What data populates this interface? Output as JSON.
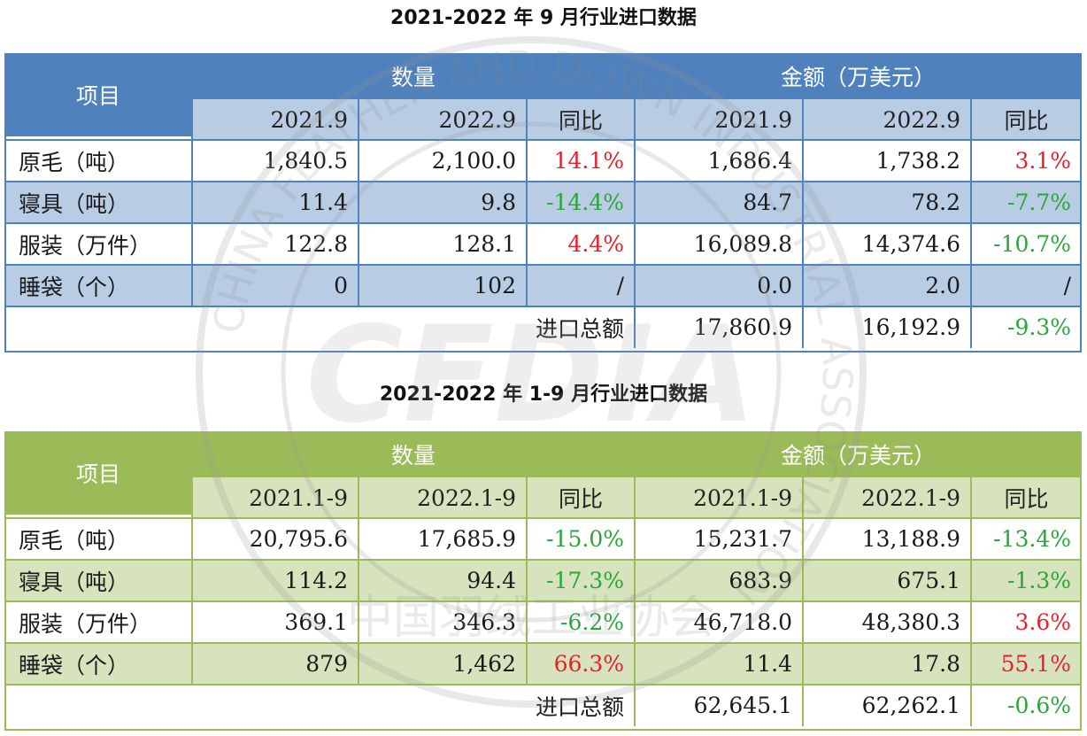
{
  "tables": [
    {
      "title": "2021-2022 年 9 月行业进口数据",
      "header": {
        "item": "项目",
        "group_qty": "数量",
        "group_amt": "金额（万美元）",
        "cols": [
          "2021.9",
          "2022.9",
          "同比",
          "2021.9",
          "2022.9",
          "同比"
        ]
      },
      "rows": [
        {
          "label": "原毛（吨）",
          "cells": [
            "1,840.5",
            "2,100.0",
            "14.1%",
            "1,686.4",
            "1,738.2",
            "3.1%"
          ]
        },
        {
          "label": "寝具（吨）",
          "cells": [
            "11.4",
            "9.8",
            "-14.4%",
            "84.7",
            "78.2",
            "-7.7%"
          ]
        },
        {
          "label": "服装（万件）",
          "cells": [
            "122.8",
            "128.1",
            "4.4%",
            "16,089.8",
            "14,374.6",
            "-10.7%"
          ]
        },
        {
          "label": "睡袋（个）",
          "cells": [
            "0",
            "102",
            "/",
            "0.0",
            "2.0",
            "/"
          ]
        }
      ],
      "total": {
        "label": "进口总额",
        "cells": [
          "17,860.9",
          "16,192.9",
          "-9.3%"
        ]
      }
    },
    {
      "title": "2021-2022 年 1-9 月行业进口数据",
      "header": {
        "item": "项目",
        "group_qty": "数量",
        "group_amt": "金额（万美元）",
        "cols": [
          "2021.1-9",
          "2022.1-9",
          "同比",
          "2021.1-9",
          "2022.1-9",
          "同比"
        ]
      },
      "rows": [
        {
          "label": "原毛（吨）",
          "cells": [
            "20,795.6",
            "17,685.9",
            "-15.0%",
            "15,231.7",
            "13,188.9",
            "-13.4%"
          ]
        },
        {
          "label": "寝具（吨）",
          "cells": [
            "114.2",
            "94.4",
            "-17.3%",
            "683.9",
            "675.1",
            "-1.3%"
          ]
        },
        {
          "label": "服装（万件）",
          "cells": [
            "369.1",
            "346.3",
            "-6.2%",
            "46,718.0",
            "48,380.3",
            "3.6%"
          ]
        },
        {
          "label": "睡袋（个）",
          "cells": [
            "879",
            "1,462",
            "66.3%",
            "11.4",
            "17.8",
            "55.1%"
          ]
        }
      ],
      "total": {
        "label": "进口总额",
        "cells": [
          "62,645.1",
          "62,262.1",
          "-0.6%"
        ]
      }
    }
  ],
  "watermark": {
    "logo_text": "CFDIA",
    "ring_text": "CHINA FEATHER AND DOWN INDUSTRIAL ASSOCIATION",
    "cn_text": "中国羽绒工业协会"
  },
  "colors": {
    "blue_header": "#4f81bd",
    "blue_light": "#b8cce4",
    "green_header": "#9bbb59",
    "green_light": "#d6e3bc",
    "increase": "#e8202a",
    "decrease": "#2aa63a"
  }
}
